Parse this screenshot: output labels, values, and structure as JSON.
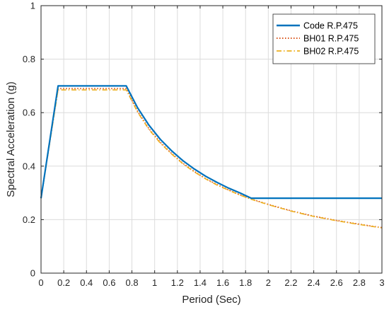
{
  "chart_data": {
    "type": "line",
    "title": "",
    "xlabel": "Period (Sec)",
    "ylabel": "Spectral Acceleration (g)",
    "xlim": [
      0,
      3
    ],
    "ylim": [
      0,
      1
    ],
    "x_ticks": [
      "0",
      "0.2",
      "0.4",
      "0.6",
      "0.8",
      "1",
      "1.2",
      "1.4",
      "1.6",
      "1.8",
      "2",
      "2.2",
      "2.4",
      "2.6",
      "2.8",
      "3"
    ],
    "y_ticks": [
      "0",
      "0.2",
      "0.4",
      "0.6",
      "0.8",
      "1"
    ],
    "grid": true,
    "legend_position": "top-right",
    "series": [
      {
        "name": "Code R.P.475",
        "color": "#0072BD",
        "style": "solid",
        "x": [
          0,
          0.15,
          0.75,
          0.85,
          0.95,
          1.05,
          1.15,
          1.25,
          1.35,
          1.45,
          1.55,
          1.65,
          1.75,
          1.85,
          3.0
        ],
        "y": [
          0.28,
          0.7,
          0.7,
          0.618,
          0.553,
          0.5,
          0.457,
          0.42,
          0.389,
          0.362,
          0.339,
          0.318,
          0.3,
          0.28,
          0.28
        ]
      },
      {
        "name": "BH01 R.P.475",
        "color": "#D95319",
        "style": "dotted",
        "x": [
          0,
          0.15,
          0.75,
          0.85,
          0.95,
          1.05,
          1.15,
          1.25,
          1.35,
          1.45,
          1.55,
          1.65,
          1.75,
          1.85,
          2.0,
          2.2,
          2.4,
          2.6,
          2.8,
          3.0
        ],
        "y": [
          0.28,
          0.69,
          0.69,
          0.605,
          0.54,
          0.489,
          0.447,
          0.41,
          0.38,
          0.353,
          0.331,
          0.311,
          0.293,
          0.277,
          0.257,
          0.233,
          0.213,
          0.197,
          0.183,
          0.17
        ]
      },
      {
        "name": "BH02 R.P.475",
        "color": "#EDB120",
        "style": "dashdot",
        "x": [
          0,
          0.15,
          0.75,
          0.85,
          0.95,
          1.05,
          1.15,
          1.25,
          1.35,
          1.45,
          1.55,
          1.65,
          1.75,
          1.85,
          2.0,
          2.2,
          2.4,
          2.6,
          2.8,
          3.0
        ],
        "y": [
          0.28,
          0.685,
          0.685,
          0.602,
          0.537,
          0.486,
          0.445,
          0.408,
          0.378,
          0.352,
          0.329,
          0.31,
          0.292,
          0.276,
          0.256,
          0.232,
          0.212,
          0.196,
          0.182,
          0.169
        ]
      }
    ]
  }
}
